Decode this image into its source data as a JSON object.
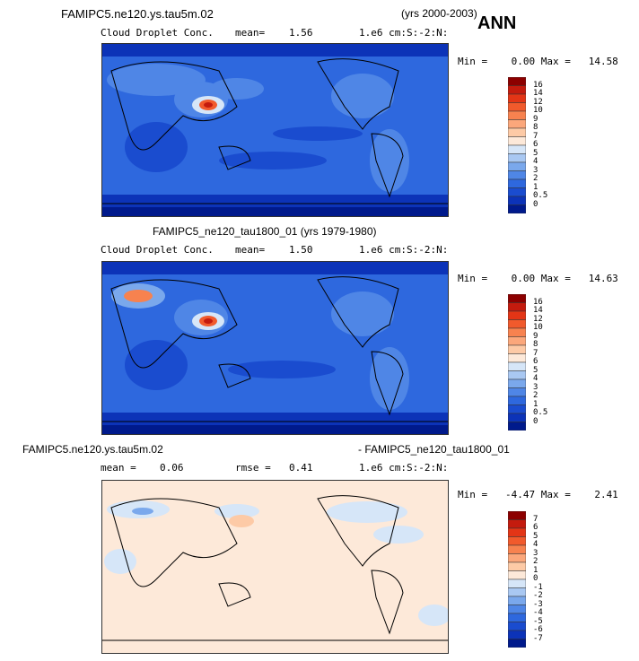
{
  "header": {
    "case_title": "FAMIPC5.ne120.ys.tau5m.02",
    "years": "(yrs 2000-2003)",
    "season": "ANN"
  },
  "panels": [
    {
      "title": "",
      "variable": "Cloud Droplet Conc.",
      "stat_label": "mean=",
      "stat_value": "1.56",
      "units": "1.e6 cm:S:-2:N:",
      "minmax": "Min =    0.00 Max =   14.58",
      "colorbar_labels": [
        "16",
        "14",
        "12",
        "10",
        "9",
        "8",
        "7",
        "6",
        "5",
        "4",
        "3",
        "2",
        "1",
        "0.5",
        "0"
      ],
      "colors": [
        "#8c0000",
        "#c41b0e",
        "#e33516",
        "#f15a2c",
        "#f7824f",
        "#fba77b",
        "#fdcaa6",
        "#fde9d9",
        "#d6e6f8",
        "#a9c8f2",
        "#7aa8ec",
        "#4f86e6",
        "#2e68de",
        "#1a4ccf",
        "#0c33b8",
        "#001a8c"
      ]
    },
    {
      "title": "FAMIPC5_ne120_tau1800_01 (yrs 1979-1980)",
      "variable": "Cloud Droplet Conc.",
      "stat_label": "mean=",
      "stat_value": "1.50",
      "units": "1.e6 cm:S:-2:N:",
      "minmax": "Min =    0.00 Max =   14.63",
      "colorbar_labels": [
        "16",
        "14",
        "12",
        "10",
        "9",
        "8",
        "7",
        "6",
        "5",
        "4",
        "3",
        "2",
        "1",
        "0.5",
        "0"
      ],
      "colors": [
        "#8c0000",
        "#c41b0e",
        "#e33516",
        "#f15a2c",
        "#f7824f",
        "#fba77b",
        "#fdcaa6",
        "#fde9d9",
        "#d6e6f8",
        "#a9c8f2",
        "#7aa8ec",
        "#4f86e6",
        "#2e68de",
        "#1a4ccf",
        "#0c33b8",
        "#001a8c"
      ]
    },
    {
      "title_left": "FAMIPC5.ne120.ys.tau5m.02",
      "title_right": "- FAMIPC5_ne120_tau1800_01",
      "mean_label": "mean =",
      "mean_value": "0.06",
      "rmse_label": "rmse =",
      "rmse_value": "0.41",
      "units": "1.e6 cm:S:-2:N:",
      "minmax": "Min =   -4.47 Max =    2.41",
      "colorbar_labels": [
        "7",
        "6",
        "5",
        "4",
        "3",
        "2",
        "1",
        "0",
        "-1",
        "-2",
        "-3",
        "-4",
        "-5",
        "-6",
        "-7"
      ],
      "colors": [
        "#8c0000",
        "#c41b0e",
        "#e33516",
        "#f15a2c",
        "#f7824f",
        "#fba77b",
        "#fdcaa6",
        "#fde9d9",
        "#d6e6f8",
        "#a9c8f2",
        "#7aa8ec",
        "#4f86e6",
        "#2e68de",
        "#1a4ccf",
        "#0c33b8",
        "#001a8c"
      ]
    }
  ]
}
